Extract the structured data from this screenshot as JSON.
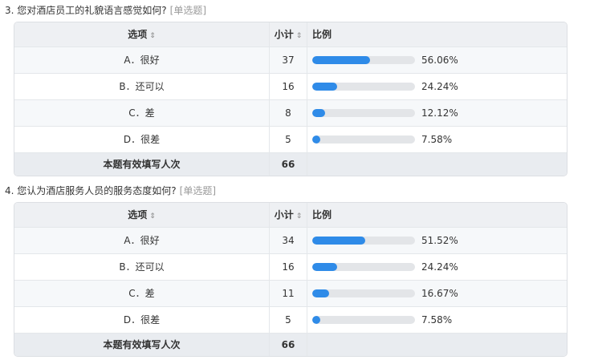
{
  "colors": {
    "bar_fill": "#2f8be8",
    "bar_track": "#e3e5e8",
    "header_bg": "#eef0f3"
  },
  "questions": [
    {
      "title": "3. 您对酒店员工的礼貌语言感觉如何?",
      "type": "[单选题]",
      "headers": {
        "option": "选项",
        "count": "小计",
        "ratio": "比例",
        "sort_icon": "sort-icon"
      },
      "rows": [
        {
          "option": "A．很好",
          "count": "37",
          "pct_text": "56.06%",
          "pct": 56.06
        },
        {
          "option": "B．还可以",
          "count": "16",
          "pct_text": "24.24%",
          "pct": 24.24
        },
        {
          "option": "C．差",
          "count": "8",
          "pct_text": "12.12%",
          "pct": 12.12
        },
        {
          "option": "D．很差",
          "count": "5",
          "pct_text": "7.58%",
          "pct": 7.58
        }
      ],
      "footer": {
        "label": "本题有效填写人次",
        "count": "66"
      }
    },
    {
      "title": "4. 您认为酒店服务人员的服务态度如何?",
      "type": "[单选题]",
      "headers": {
        "option": "选项",
        "count": "小计",
        "ratio": "比例",
        "sort_icon": "sort-icon"
      },
      "rows": [
        {
          "option": "A．很好",
          "count": "34",
          "pct_text": "51.52%",
          "pct": 51.52
        },
        {
          "option": "B．还可以",
          "count": "16",
          "pct_text": "24.24%",
          "pct": 24.24
        },
        {
          "option": "C．差",
          "count": "11",
          "pct_text": "16.67%",
          "pct": 16.67
        },
        {
          "option": "D．很差",
          "count": "5",
          "pct_text": "7.58%",
          "pct": 7.58
        }
      ],
      "footer": {
        "label": "本题有效填写人次",
        "count": "66"
      }
    }
  ]
}
